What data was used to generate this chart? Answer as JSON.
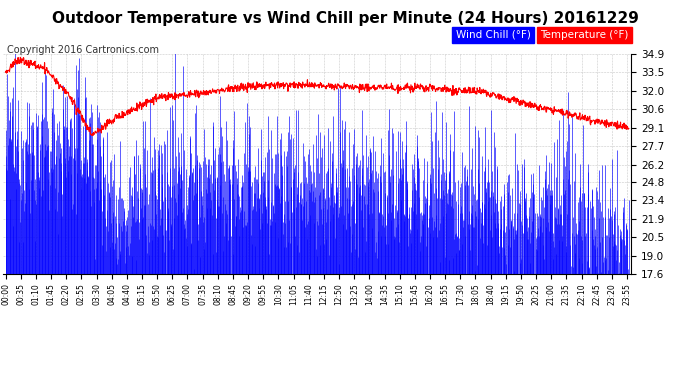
{
  "title": "Outdoor Temperature vs Wind Chill per Minute (24 Hours) 20161229",
  "copyright": "Copyright 2016 Cartronics.com",
  "ylabel_right_ticks": [
    17.6,
    19.0,
    20.5,
    21.9,
    23.4,
    24.8,
    26.2,
    27.7,
    29.1,
    30.6,
    32.0,
    33.5,
    34.9
  ],
  "ylim": [
    17.6,
    34.9
  ],
  "legend_wind_chill": "Wind Chill (°F)",
  "legend_temperature": "Temperature (°F)",
  "wind_chill_color": "#FF0000",
  "wind_chill_legend_bg": "#0000FF",
  "temperature_color": "#0000FF",
  "temperature_legend_bg": "#FF0000",
  "background_color": "#FFFFFF",
  "grid_color": "#AAAAAA",
  "title_fontsize": 11,
  "copyright_fontsize": 7,
  "legend_fontsize": 8,
  "tick_interval": 35,
  "n_minutes": 1440
}
